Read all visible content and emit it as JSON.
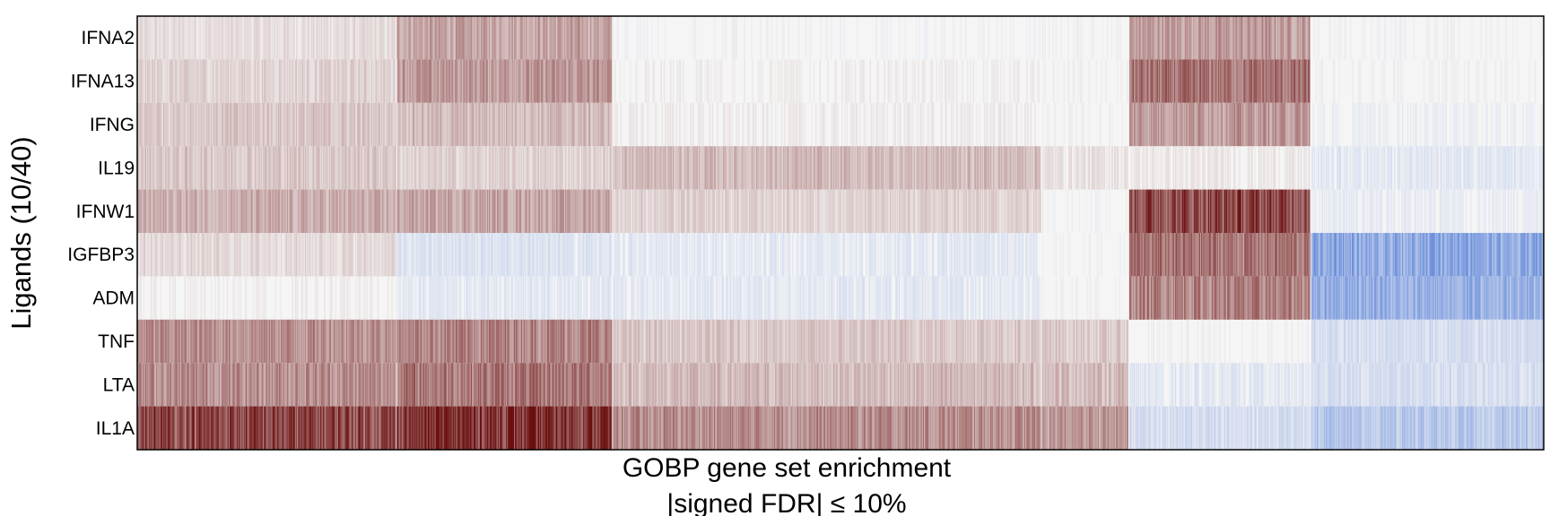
{
  "chart_data": {
    "type": "heatmap",
    "ylabel": "Ligands (10/40)",
    "xlabel_lines": [
      "GOBP gene set enrichment",
      "|signed FDR| ≤ 10%"
    ],
    "rows": [
      "IFNA2",
      "IFNA13",
      "IFNG",
      "IL19",
      "IFNW1",
      "IGFBP3",
      "ADM",
      "TNF",
      "LTA",
      "IL1A"
    ],
    "color_scale": {
      "negative": "#2a5fcf",
      "neutral": "#f5f5f5",
      "positive": "#6b0f0f",
      "range": [
        -1,
        1
      ]
    },
    "column_count": 1400,
    "column_clusters": [
      {
        "name": "cluster-1",
        "fraction": 0.184
      },
      {
        "name": "cluster-2",
        "fraction": 0.154
      },
      {
        "name": "cluster-3",
        "fraction": 0.305
      },
      {
        "name": "cluster-4",
        "fraction": 0.062
      },
      {
        "name": "cluster-5",
        "fraction": 0.129
      },
      {
        "name": "cluster-6",
        "fraction": 0.166
      }
    ],
    "cluster_levels": [
      [
        0.1,
        0.35,
        0.0,
        0.0,
        0.38,
        0.0
      ],
      [
        0.15,
        0.4,
        0.02,
        0.0,
        0.55,
        0.0
      ],
      [
        0.2,
        0.25,
        0.03,
        0.0,
        0.4,
        -0.03
      ],
      [
        0.2,
        0.15,
        0.25,
        0.08,
        0.05,
        -0.08
      ],
      [
        0.3,
        0.35,
        0.15,
        0.0,
        0.75,
        -0.05
      ],
      [
        0.12,
        -0.12,
        -0.08,
        0.0,
        0.55,
        -0.5
      ],
      [
        0.02,
        -0.08,
        -0.08,
        0.0,
        0.5,
        -0.45
      ],
      [
        0.45,
        0.5,
        0.2,
        0.18,
        0.0,
        -0.15
      ],
      [
        0.45,
        0.55,
        0.25,
        0.25,
        -0.08,
        -0.15
      ],
      [
        0.75,
        0.85,
        0.45,
        0.4,
        -0.15,
        -0.3
      ]
    ]
  }
}
